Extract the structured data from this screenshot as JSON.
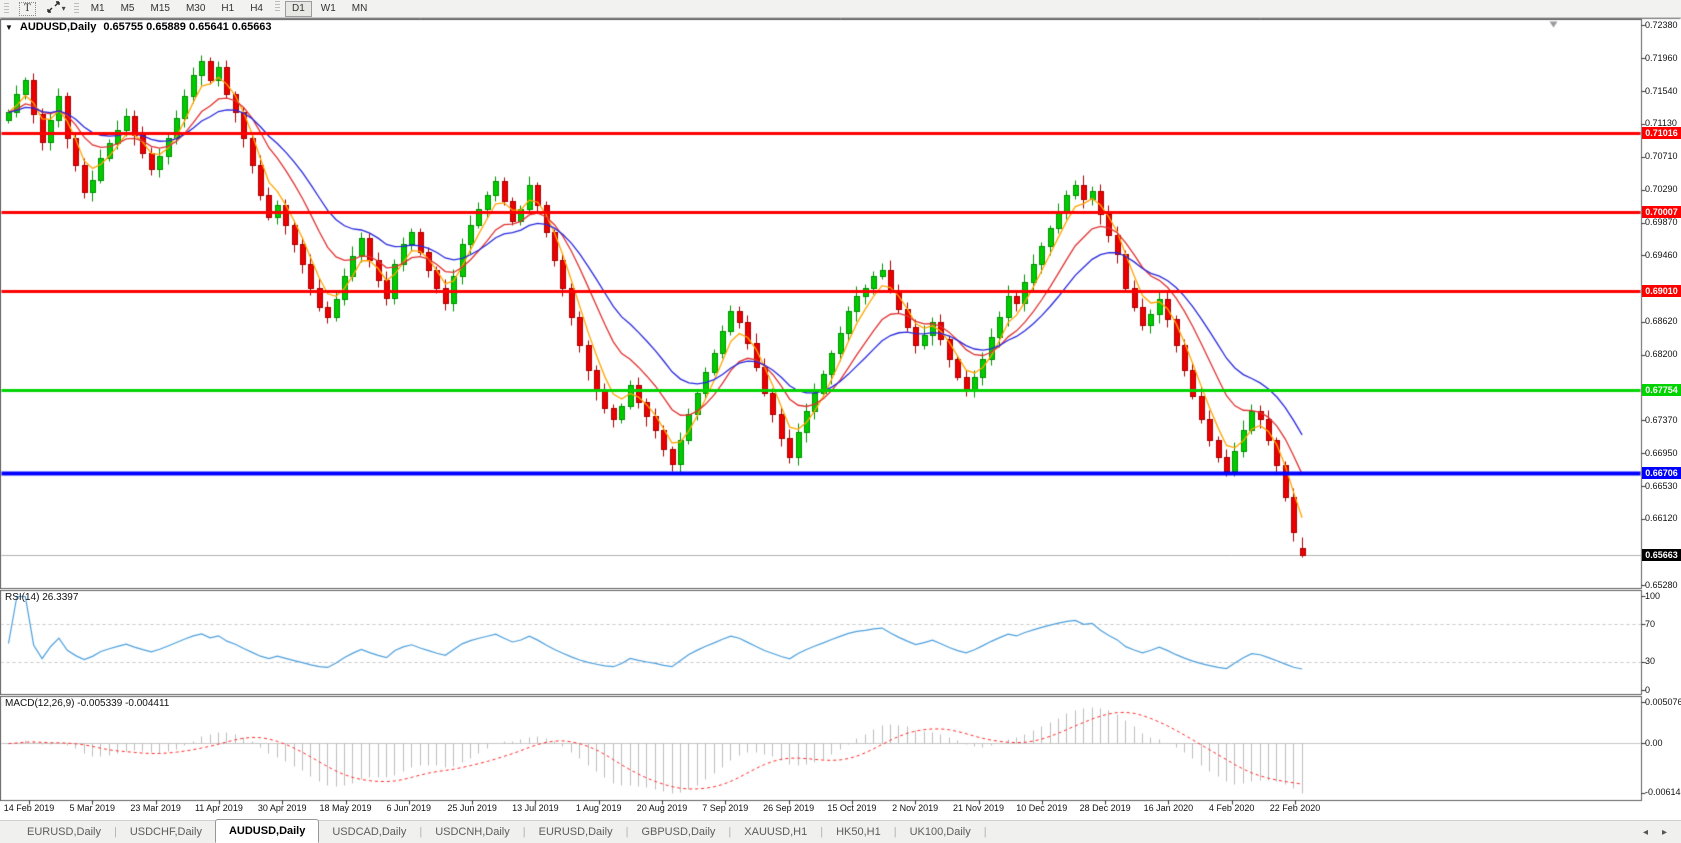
{
  "icons": {
    "dropdown": "▼",
    "caret": "▾",
    "tab_scroll_left": "◂",
    "tab_scroll_right": "▸"
  },
  "toolbar": {
    "text_tool_label": "T",
    "timeframes": [
      "M1",
      "M5",
      "M15",
      "M30",
      "H1",
      "H4",
      "D1",
      "W1",
      "MN"
    ],
    "active_timeframe": "D1"
  },
  "window": {
    "title": "AUDUSD,Daily",
    "ohlc_text": "0.65755 0.65889 0.65641 0.65663"
  },
  "rsi": {
    "label": "RSI(14) 26.3397",
    "ticks": [
      "100",
      "70",
      "30",
      "0"
    ],
    "tick_values": [
      100,
      70,
      30,
      0
    ],
    "levels": [
      70,
      30
    ]
  },
  "macd": {
    "label": "MACD(12,26,9) -0.005339 -0.004411",
    "ticks": [
      "0.005076",
      "0.00",
      "-0.006148"
    ],
    "tick_values": [
      0.005076,
      0,
      -0.006148
    ]
  },
  "price_axis": {
    "ticks": [
      "0.72380",
      "0.71960",
      "0.71540",
      "0.71130",
      "0.70710",
      "0.70290",
      "0.69870",
      "0.69460",
      "0.68620",
      "0.68200",
      "0.67370",
      "0.66950",
      "0.66530",
      "0.66120",
      "0.65280"
    ]
  },
  "tabs": {
    "items": [
      {
        "label": "EURUSD,Daily",
        "active": false
      },
      {
        "label": "USDCHF,Daily",
        "active": false
      },
      {
        "label": "AUDUSD,Daily",
        "active": true
      },
      {
        "label": "USDCAD,Daily",
        "active": false
      },
      {
        "label": "USDCNH,Daily",
        "active": false
      },
      {
        "label": "EURUSD,Daily",
        "active": false
      },
      {
        "label": "GBPUSD,Daily",
        "active": false
      },
      {
        "label": "XAUUSD,H1",
        "active": false
      },
      {
        "label": "HK50,H1",
        "active": false
      },
      {
        "label": "UK100,Daily",
        "active": false
      }
    ]
  },
  "chart_data": {
    "type": "candlestick",
    "symbol": "AUDUSD",
    "timeframe": "Daily",
    "x_labels": [
      "14 Feb 2019",
      "5 Mar 2019",
      "23 Mar 2019",
      "11 Apr 2019",
      "30 Apr 2019",
      "18 May 2019",
      "6 Jun 2019",
      "25 Jun 2019",
      "13 Jul 2019",
      "1 Aug 2019",
      "20 Aug 2019",
      "7 Sep 2019",
      "26 Sep 2019",
      "15 Oct 2019",
      "2 Nov 2019",
      "21 Nov 2019",
      "10 Dec 2019",
      "28 Dec 2019",
      "16 Jan 2020",
      "4 Feb 2020",
      "22 Feb 2020"
    ],
    "price_range": [
      0.6528,
      0.7238
    ],
    "closes": [
      0.7128,
      0.715,
      0.7168,
      0.7125,
      0.709,
      0.7118,
      0.7148,
      0.7095,
      0.706,
      0.7026,
      0.7042,
      0.707,
      0.7088,
      0.7105,
      0.7122,
      0.7098,
      0.7076,
      0.7055,
      0.7072,
      0.7095,
      0.712,
      0.7148,
      0.7175,
      0.7192,
      0.7168,
      0.7185,
      0.715,
      0.7128,
      0.7095,
      0.706,
      0.7022,
      0.6995,
      0.701,
      0.6985,
      0.696,
      0.6935,
      0.6905,
      0.688,
      0.6868,
      0.689,
      0.692,
      0.6945,
      0.6968,
      0.694,
      0.6915,
      0.6892,
      0.6935,
      0.696,
      0.6975,
      0.695,
      0.6928,
      0.6905,
      0.6885,
      0.692,
      0.696,
      0.6985,
      0.7005,
      0.7022,
      0.704,
      0.7015,
      0.699,
      0.7005,
      0.7035,
      0.701,
      0.6975,
      0.694,
      0.6905,
      0.6868,
      0.6832,
      0.68,
      0.6775,
      0.6752,
      0.6738,
      0.6755,
      0.6782,
      0.676,
      0.6742,
      0.6725,
      0.67,
      0.6682,
      0.6712,
      0.6745,
      0.6772,
      0.6798,
      0.6822,
      0.685,
      0.6875,
      0.6862,
      0.6835,
      0.6805,
      0.6772,
      0.6745,
      0.6715,
      0.669,
      0.6722,
      0.6748,
      0.6772,
      0.6795,
      0.6822,
      0.6848,
      0.6875,
      0.6895,
      0.6905,
      0.692,
      0.6928,
      0.6902,
      0.6878,
      0.6855,
      0.6832,
      0.6845,
      0.6862,
      0.684,
      0.6815,
      0.6792,
      0.6775,
      0.6792,
      0.6815,
      0.6842,
      0.6868,
      0.6895,
      0.6885,
      0.6912,
      0.6935,
      0.6958,
      0.698,
      0.7002,
      0.7022,
      0.7035,
      0.7018,
      0.7028,
      0.6998,
      0.6972,
      0.6948,
      0.6905,
      0.688,
      0.6858,
      0.6872,
      0.689,
      0.6865,
      0.6832,
      0.68,
      0.6768,
      0.6738,
      0.6712,
      0.669,
      0.6672,
      0.6698,
      0.6725,
      0.6748,
      0.6738,
      0.6712,
      0.668,
      0.664,
      0.6595,
      0.65663
    ],
    "last_candle": {
      "open": 0.65755,
      "high": 0.65889,
      "low": 0.65641,
      "close": 0.65663
    },
    "moving_averages": [
      {
        "name": "fast",
        "period": 4,
        "color": "#ffa500"
      },
      {
        "name": "medium",
        "period": 10,
        "color": "#e03232"
      },
      {
        "name": "slow",
        "period": 18,
        "color": "#2828dc"
      }
    ],
    "horizontal_lines": [
      {
        "label": "0.71016",
        "value": 0.71016,
        "color": "#ff0000",
        "thickness": 3
      },
      {
        "label": "0.70007",
        "value": 0.70007,
        "color": "#ff0000",
        "thickness": 3
      },
      {
        "label": "0.69010",
        "value": 0.6901,
        "color": "#ff0000",
        "thickness": 3
      },
      {
        "label": "0.67754",
        "value": 0.67754,
        "color": "#00d300",
        "thickness": 3
      },
      {
        "label": "0.66706",
        "value": 0.66706,
        "color": "#0000ff",
        "thickness": 4
      }
    ],
    "current_price": {
      "label": "0.65663",
      "value": 0.65663,
      "badge_color": "#000000",
      "line_color": "#b0b0b0"
    },
    "candle_colors": {
      "up": "#00cc00",
      "up_border": "#009100",
      "down": "#ed0000",
      "down_border": "#a80000"
    },
    "rsi": {
      "period": 14,
      "last": 26.3397,
      "range": [
        0,
        100
      ],
      "levels": [
        30,
        70
      ],
      "color": "#4d9fdc"
    },
    "macd": {
      "fast": 12,
      "slow": 26,
      "signal": 9,
      "last": -0.005339,
      "last_signal": -0.004411,
      "range": [
        -0.006148,
        0.005076
      ],
      "bar_color": "#bdbdbd",
      "signal_color": "#ff2a2a"
    }
  }
}
